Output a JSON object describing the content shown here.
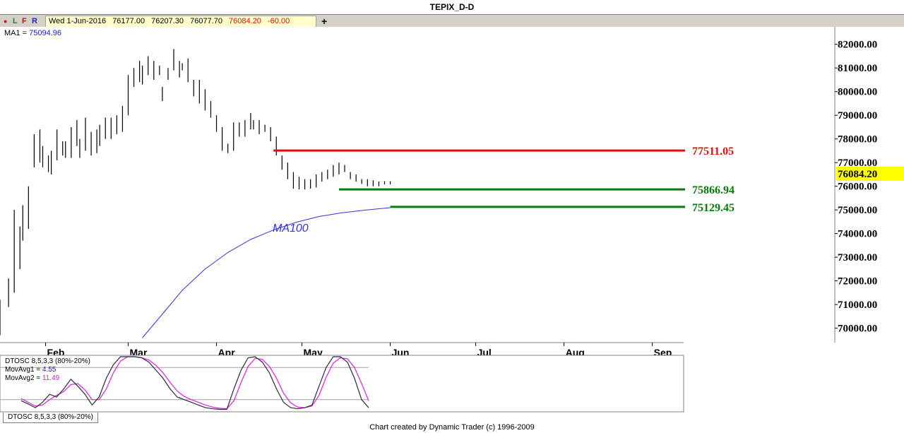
{
  "window": {
    "title": "TEPIX_D-D"
  },
  "toolbar": {
    "btn_dot": "●",
    "btn_l": "L",
    "btn_f": "F",
    "btn_r": "R",
    "date": "Wed 1-Jun-2016",
    "open": "76177.00",
    "high": "76207.30",
    "low": "76077.70",
    "close": "76084.20",
    "change": "-60.00",
    "add_label": "+"
  },
  "indicators": {
    "ma1_label": "MA1 = ",
    "ma1_value": "75094.96",
    "ma_annotation": "MA100"
  },
  "oscillator": {
    "title": "DTOSC 8,5,3,3 (80%-20%)",
    "mov1_label": "MovAvg1 = ",
    "mov1_value": "4.55",
    "mov2_label": "MovAvg2 = ",
    "mov2_value": "11.49",
    "tab_label": "DTOSC 8,5,3,3 (80%-20%)",
    "upper_band": 80,
    "lower_band": 20
  },
  "levels": [
    {
      "value": 77511.05,
      "label": "77511.05",
      "color": "#e01010"
    },
    {
      "value": 75866.94,
      "label": "75866.94",
      "color": "#0a7a0a"
    },
    {
      "value": 75129.45,
      "label": "75129.45",
      "color": "#0a7a0a"
    }
  ],
  "last_price": {
    "value": 76084.2,
    "label": "76084.20",
    "bg": "#ffff00"
  },
  "footer": "Chart created by Dynamic Trader  (c) 1996-2009",
  "colors": {
    "bars": "#000000",
    "ma": "#3333dd",
    "osc1": "#2a2a3a",
    "osc2": "#e020e0"
  },
  "chart_data": {
    "type": "line",
    "title": "TEPIX_D-D",
    "xlabel": "",
    "ylabel": "",
    "ylim": [
      69600,
      82500
    ],
    "y_ticks": [
      "82000.00",
      "81000.00",
      "80000.00",
      "79000.00",
      "78000.00",
      "77000.00",
      "76000.00",
      "75000.00",
      "74000.00",
      "73000.00",
      "72000.00",
      "71000.00",
      "70000.00"
    ],
    "x_ticks": [
      "Feb",
      "Mar",
      "Apr",
      "May",
      "Jun",
      "Jul",
      "Aug",
      "Sep"
    ],
    "x_range": [
      "2016-01-16",
      "2016-09-12"
    ],
    "grid": false,
    "series": [
      {
        "name": "TEPIX",
        "ohlc_dates": [
          "2016-01-16",
          "2016-01-19",
          "2016-01-21",
          "2016-01-23",
          "2016-01-24",
          "2016-01-26",
          "2016-01-28",
          "2016-01-30",
          "2016-01-31",
          "2016-02-02",
          "2016-02-03",
          "2016-02-05",
          "2016-02-07",
          "2016-02-08",
          "2016-02-10",
          "2016-02-12",
          "2016-02-13",
          "2016-02-15",
          "2016-02-17",
          "2016-02-19",
          "2016-02-20",
          "2016-02-22",
          "2016-02-24",
          "2016-02-26",
          "2016-02-28",
          "2016-03-01",
          "2016-03-03",
          "2016-03-05",
          "2016-03-06",
          "2016-03-08",
          "2016-03-10",
          "2016-03-12",
          "2016-03-13",
          "2016-03-15",
          "2016-03-17",
          "2016-03-19",
          "2016-03-20",
          "2016-03-22",
          "2016-03-24",
          "2016-03-26",
          "2016-03-28",
          "2016-03-30",
          "2016-04-01",
          "2016-04-03",
          "2016-04-05",
          "2016-04-07",
          "2016-04-09",
          "2016-04-11",
          "2016-04-13",
          "2016-04-14",
          "2016-04-16",
          "2016-04-18",
          "2016-04-20",
          "2016-04-22",
          "2016-04-24",
          "2016-04-26",
          "2016-04-28",
          "2016-04-30",
          "2016-05-02",
          "2016-05-04",
          "2016-05-06",
          "2016-05-08",
          "2016-05-10",
          "2016-05-12",
          "2016-05-14",
          "2016-05-16",
          "2016-05-18",
          "2016-05-20",
          "2016-05-22",
          "2016-05-24",
          "2016-05-26",
          "2016-05-28",
          "2016-05-30",
          "2016-06-01"
        ],
        "ohlc_high": [
          71200,
          72100,
          75000,
          74300,
          75200,
          76000,
          78200,
          78400,
          77700,
          77300,
          77500,
          78400,
          77900,
          77900,
          78500,
          78800,
          78000,
          78900,
          78300,
          78400,
          78600,
          78900,
          78900,
          79000,
          79400,
          80700,
          81000,
          81300,
          81100,
          81500,
          81300,
          81100,
          80200,
          81000,
          81800,
          81300,
          81200,
          81400,
          80500,
          80500,
          80100,
          79600,
          79000,
          78500,
          77800,
          78700,
          78700,
          78800,
          79100,
          78800,
          78800,
          78600,
          78500,
          78100,
          77300,
          77000,
          76600,
          76400,
          76300,
          76300,
          76500,
          76600,
          76700,
          76900,
          77000,
          76900,
          76600,
          76500,
          76300,
          76300,
          76250,
          76200,
          76210,
          76210
        ],
        "ohlc_low": [
          69700,
          70900,
          71500,
          72500,
          73700,
          74200,
          76800,
          77000,
          76800,
          76600,
          76500,
          77100,
          77300,
          77200,
          77200,
          77700,
          77200,
          77500,
          77300,
          77400,
          77700,
          78000,
          78000,
          78200,
          78300,
          79000,
          80200,
          80400,
          80300,
          80700,
          80500,
          80700,
          79600,
          80500,
          80900,
          80600,
          80900,
          80400,
          79800,
          79500,
          79200,
          78900,
          78300,
          77500,
          77400,
          77500,
          78100,
          78100,
          78400,
          78400,
          78200,
          78300,
          77900,
          77300,
          76700,
          76300,
          75900,
          75867,
          75870,
          75900,
          75950,
          76200,
          76300,
          76400,
          76500,
          76600,
          76300,
          76200,
          76100,
          76000,
          76000,
          76000,
          76077,
          76077
        ]
      }
    ],
    "ma100": {
      "name": "MA100",
      "x": [
        "2016-03-06",
        "2016-03-12",
        "2016-03-20",
        "2016-03-28",
        "2016-04-05",
        "2016-04-13",
        "2016-04-21",
        "2016-04-29",
        "2016-05-07",
        "2016-05-15",
        "2016-05-23",
        "2016-06-01"
      ],
      "y": [
        69600,
        70450,
        71600,
        72500,
        73200,
        73750,
        74150,
        74480,
        74720,
        74880,
        74990,
        75095
      ]
    },
    "oscillator": {
      "ylim": [
        0,
        100
      ],
      "movavg1": [
        18,
        12,
        5,
        15,
        30,
        25,
        40,
        58,
        45,
        30,
        10,
        25,
        60,
        85,
        100,
        100,
        100,
        98,
        90,
        75,
        60,
        40,
        25,
        20,
        15,
        10,
        5,
        3,
        2,
        2,
        40,
        75,
        98,
        100,
        90,
        70,
        40,
        15,
        5,
        3,
        5,
        10,
        45,
        80,
        100,
        100,
        90,
        60,
        20,
        5
      ],
      "movavg2": [
        22,
        15,
        8,
        10,
        20,
        28,
        35,
        48,
        50,
        38,
        20,
        20,
        40,
        70,
        92,
        100,
        100,
        98,
        94,
        84,
        70,
        52,
        36,
        26,
        20,
        15,
        10,
        6,
        4,
        3,
        18,
        52,
        82,
        97,
        95,
        82,
        60,
        32,
        14,
        6,
        5,
        8,
        28,
        62,
        88,
        98,
        96,
        80,
        50,
        18
      ]
    }
  }
}
